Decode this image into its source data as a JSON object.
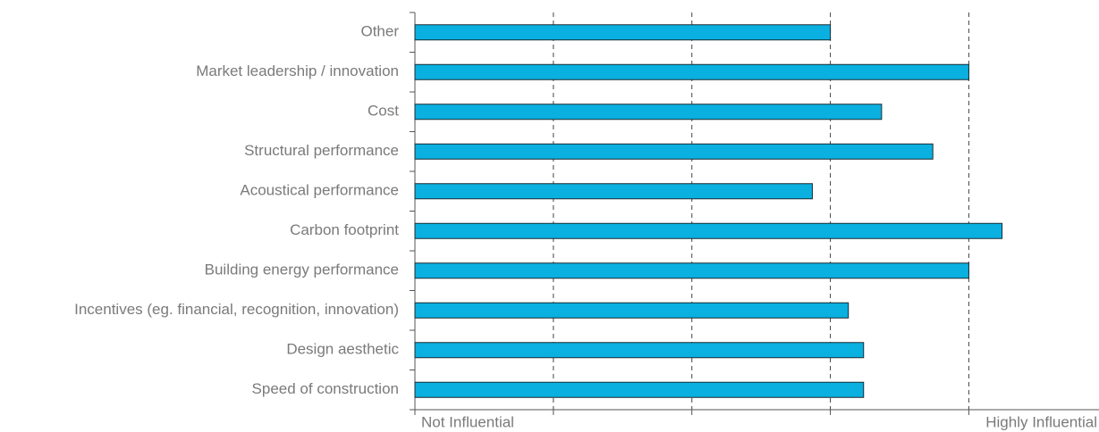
{
  "chart_data": {
    "type": "hbar",
    "categories": [
      "Other",
      "Market leadership / innovation",
      "Cost",
      "Structural performance",
      "Acoustical performance",
      "Carbon footprint",
      "Building energy performance",
      "Incentives (eg. financial, recognition, innovation)",
      "Design aesthetic",
      "Speed of construction"
    ],
    "values": [
      4.0,
      5.0,
      4.37,
      4.74,
      3.87,
      5.24,
      5.0,
      4.13,
      4.24,
      4.24
    ],
    "color": "#0ab0e0",
    "xlim": [
      1,
      5.94
    ],
    "xticks": [
      1,
      2,
      3,
      4,
      5
    ],
    "xtick_labels": [
      {
        "value": 1,
        "label": "Not Influential"
      },
      {
        "value": 5,
        "label": "Highly Influential"
      }
    ],
    "grid": true
  }
}
